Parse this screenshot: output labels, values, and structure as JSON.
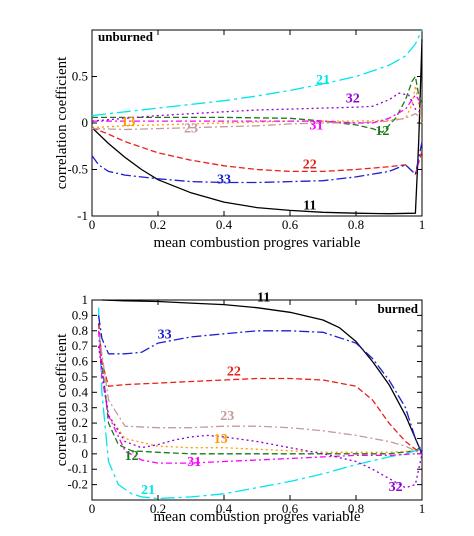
{
  "colors": {
    "s11": "#000000",
    "s12": "#1a7a1a",
    "s13": "#ff9900",
    "s21": "#00e5ee",
    "s22": "#e8201a",
    "s23": "#c49a9a",
    "s31": "#ff00ff",
    "s32": "#9400d3",
    "s33": "#1f1fd0"
  },
  "chart_data": [
    {
      "type": "line",
      "panel_tag": "unburned",
      "xlabel": "mean combustion progres variable",
      "ylabel": "correlation coefficient",
      "xlim": [
        0,
        1
      ],
      "ylim": [
        -1,
        1
      ],
      "xticks": [
        "0",
        "0.2",
        "0.4",
        "0.6",
        "0.8",
        "1"
      ],
      "yticks": [
        "-1",
        "-0.5",
        "0",
        "0.5"
      ],
      "series": [
        {
          "name": "11",
          "color_key": "s11",
          "dash": "solid",
          "x": [
            0,
            0.05,
            0.1,
            0.15,
            0.2,
            0.3,
            0.4,
            0.5,
            0.6,
            0.7,
            0.8,
            0.9,
            0.98,
            0.99,
            1.0
          ],
          "y": [
            -0.05,
            -0.22,
            -0.37,
            -0.5,
            -0.61,
            -0.75,
            -0.85,
            -0.91,
            -0.94,
            -0.96,
            -0.97,
            -0.975,
            -0.97,
            -0.2,
            0.9
          ]
        },
        {
          "name": "12",
          "color_key": "s12",
          "dash": "6 3",
          "x": [
            0,
            0.2,
            0.4,
            0.6,
            0.7,
            0.8,
            0.85,
            0.88,
            0.92,
            0.95,
            0.97,
            0.98,
            0.99,
            1.0
          ],
          "y": [
            0.06,
            0.06,
            0.06,
            0.05,
            0.02,
            -0.02,
            -0.06,
            -0.1,
            0.05,
            0.25,
            0.45,
            0.5,
            0.3,
            0.2
          ]
        },
        {
          "name": "13",
          "color_key": "s13",
          "dash": "2 3",
          "x": [
            0,
            0.1,
            0.2,
            0.4,
            0.6,
            0.8,
            0.9,
            0.95,
            0.97,
            0.98,
            0.99,
            1.0
          ],
          "y": [
            -0.05,
            -0.03,
            -0.02,
            0,
            0.02,
            0.02,
            0.03,
            0.05,
            0.2,
            0.4,
            0.2,
            0.0
          ]
        },
        {
          "name": "21",
          "color_key": "s21",
          "dash": "14 4 3 4",
          "x": [
            0,
            0.1,
            0.2,
            0.3,
            0.4,
            0.5,
            0.6,
            0.7,
            0.8,
            0.9,
            0.95,
            0.98,
            1.0
          ],
          "y": [
            0.08,
            0.12,
            0.16,
            0.2,
            0.24,
            0.29,
            0.35,
            0.42,
            0.5,
            0.62,
            0.72,
            0.85,
            1.0
          ]
        },
        {
          "name": "22",
          "color_key": "s22",
          "dash": "6 3",
          "x": [
            0,
            0.05,
            0.1,
            0.2,
            0.3,
            0.4,
            0.5,
            0.6,
            0.7,
            0.8,
            0.9,
            0.95,
            0.98,
            1.0
          ],
          "y": [
            -0.05,
            -0.12,
            -0.2,
            -0.32,
            -0.4,
            -0.46,
            -0.5,
            -0.52,
            -0.52,
            -0.5,
            -0.47,
            -0.45,
            -0.55,
            -0.3
          ]
        },
        {
          "name": "23",
          "color_key": "s23",
          "dash": "8 3 2 3",
          "x": [
            0,
            0.1,
            0.2,
            0.3,
            0.4,
            0.5,
            0.6,
            0.7,
            0.8,
            0.9,
            0.95,
            0.98,
            1.0
          ],
          "y": [
            -0.06,
            -0.07,
            -0.06,
            -0.05,
            -0.04,
            -0.03,
            -0.01,
            0.0,
            0.0,
            0.02,
            0.05,
            0.1,
            0.05
          ]
        },
        {
          "name": "31",
          "color_key": "s31",
          "dash": "6 3 2 3",
          "x": [
            0,
            0.2,
            0.4,
            0.6,
            0.7,
            0.8,
            0.85,
            0.9,
            0.95,
            0.98,
            1.0
          ],
          "y": [
            0.02,
            0.02,
            0.02,
            0.02,
            0.02,
            0.0,
            0.0,
            0.05,
            0.15,
            0.3,
            0.2
          ]
        },
        {
          "name": "32",
          "color_key": "s32",
          "dash": "2 3",
          "x": [
            0,
            0.1,
            0.2,
            0.3,
            0.4,
            0.5,
            0.6,
            0.7,
            0.8,
            0.85,
            0.9,
            0.93,
            0.96,
            0.98,
            1.0
          ],
          "y": [
            0.02,
            0.05,
            0.08,
            0.1,
            0.12,
            0.14,
            0.15,
            0.16,
            0.17,
            0.18,
            0.25,
            0.32,
            0.3,
            0.15,
            0.1
          ]
        },
        {
          "name": "33",
          "color_key": "s33",
          "dash": "10 3 2 3",
          "x": [
            0,
            0.02,
            0.05,
            0.1,
            0.2,
            0.3,
            0.4,
            0.5,
            0.6,
            0.7,
            0.8,
            0.9,
            0.95,
            0.98,
            1.0
          ],
          "y": [
            -0.35,
            -0.45,
            -0.52,
            -0.56,
            -0.6,
            -0.63,
            -0.64,
            -0.64,
            -0.63,
            -0.62,
            -0.58,
            -0.52,
            -0.45,
            -0.55,
            -0.2
          ]
        }
      ],
      "label_positions": [
        {
          "text": "11",
          "x": 0.66,
          "y": -0.93
        },
        {
          "text": "12",
          "x": 0.88,
          "y": -0.13
        },
        {
          "text": "13",
          "x": 0.11,
          "y": -0.03
        },
        {
          "text": "21",
          "x": 0.7,
          "y": 0.42
        },
        {
          "text": "22",
          "x": 0.66,
          "y": -0.49
        },
        {
          "text": "23",
          "x": 0.3,
          "y": -0.1
        },
        {
          "text": "31",
          "x": 0.68,
          "y": -0.07
        },
        {
          "text": "32",
          "x": 0.79,
          "y": 0.22
        },
        {
          "text": "33",
          "x": 0.4,
          "y": -0.65
        }
      ]
    },
    {
      "type": "line",
      "panel_tag": "burned",
      "xlabel": "mean combustion progres variable",
      "ylabel": "correlation coefficient",
      "xlim": [
        0,
        1
      ],
      "ylim": [
        -0.3,
        1
      ],
      "xticks": [
        "0",
        "0.2",
        "0.4",
        "0.6",
        "0.8",
        "1"
      ],
      "yticks": [
        "-0.2",
        "-0.1",
        "0",
        "0.1",
        "0.2",
        "0.3",
        "0.4",
        "0.5",
        "0.6",
        "0.7",
        "0.8",
        "0.9",
        "1"
      ],
      "series": [
        {
          "name": "11",
          "color_key": "s11",
          "dash": "solid",
          "x": [
            0.03,
            0.1,
            0.2,
            0.3,
            0.4,
            0.5,
            0.6,
            0.7,
            0.75,
            0.8,
            0.85,
            0.9,
            0.95,
            0.98,
            1.0
          ],
          "y": [
            1.0,
            0.995,
            0.99,
            0.98,
            0.97,
            0.95,
            0.92,
            0.87,
            0.82,
            0.73,
            0.6,
            0.45,
            0.25,
            0.1,
            0.0
          ]
        },
        {
          "name": "12",
          "color_key": "s12",
          "dash": "6 3",
          "x": [
            0.02,
            0.03,
            0.05,
            0.08,
            0.12,
            0.2,
            0.3,
            0.4,
            0.5,
            0.6,
            0.7,
            0.8,
            0.9,
            0.98,
            1.0
          ],
          "y": [
            0.85,
            0.6,
            0.2,
            0.06,
            0.02,
            0.01,
            0.0,
            0.0,
            0.0,
            0.0,
            0.0,
            0.0,
            0.0,
            0.02,
            0.05
          ]
        },
        {
          "name": "13",
          "color_key": "s13",
          "dash": "2 3",
          "x": [
            0.02,
            0.05,
            0.1,
            0.2,
            0.3,
            0.4,
            0.5,
            0.6,
            0.7,
            0.8,
            0.9,
            0.98,
            1.0
          ],
          "y": [
            0.7,
            0.25,
            0.1,
            0.05,
            0.04,
            0.04,
            0.03,
            0.02,
            0.01,
            0.01,
            0.01,
            0.02,
            0.0
          ]
        },
        {
          "name": "21",
          "color_key": "s21",
          "dash": "14 4 3 4",
          "x": [
            0.02,
            0.03,
            0.05,
            0.08,
            0.12,
            0.15,
            0.2,
            0.3,
            0.4,
            0.5,
            0.6,
            0.7,
            0.8,
            0.9,
            0.95,
            0.98,
            1.0
          ],
          "y": [
            0.95,
            0.4,
            -0.05,
            -0.2,
            -0.26,
            -0.28,
            -0.29,
            -0.28,
            -0.26,
            -0.22,
            -0.18,
            -0.13,
            -0.07,
            -0.02,
            0.0,
            0.02,
            0.03
          ]
        },
        {
          "name": "22",
          "color_key": "s22",
          "dash": "6 3",
          "x": [
            0.02,
            0.03,
            0.05,
            0.1,
            0.2,
            0.3,
            0.4,
            0.5,
            0.6,
            0.7,
            0.8,
            0.85,
            0.9,
            0.95,
            0.98,
            1.0
          ],
          "y": [
            0.85,
            0.6,
            0.44,
            0.45,
            0.46,
            0.47,
            0.48,
            0.49,
            0.49,
            0.48,
            0.44,
            0.35,
            0.2,
            0.08,
            0.03,
            0.0
          ]
        },
        {
          "name": "23",
          "color_key": "s23",
          "dash": "8 3 2 3",
          "x": [
            0.02,
            0.05,
            0.1,
            0.2,
            0.3,
            0.4,
            0.5,
            0.6,
            0.7,
            0.8,
            0.9,
            0.95,
            1.0
          ],
          "y": [
            0.8,
            0.35,
            0.18,
            0.17,
            0.17,
            0.18,
            0.18,
            0.17,
            0.15,
            0.12,
            0.08,
            0.05,
            0.0
          ]
        },
        {
          "name": "31",
          "color_key": "s31",
          "dash": "6 3 2 3",
          "x": [
            0.02,
            0.03,
            0.05,
            0.1,
            0.15,
            0.2,
            0.3,
            0.4,
            0.5,
            0.6,
            0.7,
            0.8,
            0.9,
            0.98,
            1.0
          ],
          "y": [
            0.8,
            0.5,
            0.25,
            0.02,
            -0.04,
            -0.06,
            -0.06,
            -0.05,
            -0.04,
            -0.03,
            -0.02,
            -0.01,
            -0.01,
            0.0,
            0.0
          ]
        },
        {
          "name": "32",
          "color_key": "s32",
          "dash": "2 3",
          "x": [
            0.02,
            0.05,
            0.1,
            0.15,
            0.2,
            0.25,
            0.3,
            0.35,
            0.4,
            0.5,
            0.6,
            0.7,
            0.8,
            0.85,
            0.9,
            0.95,
            0.98,
            1.0
          ],
          "y": [
            0.7,
            0.25,
            0.08,
            0.04,
            0.06,
            0.09,
            0.11,
            0.12,
            0.11,
            0.08,
            0.04,
            0.0,
            -0.05,
            -0.1,
            -0.16,
            -0.22,
            -0.2,
            0.0
          ]
        },
        {
          "name": "33",
          "color_key": "s33",
          "dash": "10 3 2 3",
          "x": [
            0.02,
            0.03,
            0.05,
            0.1,
            0.15,
            0.2,
            0.3,
            0.4,
            0.5,
            0.6,
            0.7,
            0.8,
            0.85,
            0.9,
            0.95,
            0.98,
            1.0
          ],
          "y": [
            0.9,
            0.75,
            0.65,
            0.65,
            0.66,
            0.72,
            0.76,
            0.78,
            0.8,
            0.8,
            0.79,
            0.72,
            0.62,
            0.48,
            0.3,
            0.1,
            0.0
          ]
        }
      ],
      "label_positions": [
        {
          "text": "11",
          "x": 0.52,
          "y": 0.99
        },
        {
          "text": "12",
          "x": 0.12,
          "y": -0.04
        },
        {
          "text": "13",
          "x": 0.39,
          "y": 0.07
        },
        {
          "text": "21",
          "x": 0.17,
          "y": -0.26
        },
        {
          "text": "22",
          "x": 0.43,
          "y": 0.51
        },
        {
          "text": "23",
          "x": 0.41,
          "y": 0.22
        },
        {
          "text": "31",
          "x": 0.31,
          "y": -0.08
        },
        {
          "text": "32",
          "x": 0.92,
          "y": -0.24
        },
        {
          "text": "33",
          "x": 0.22,
          "y": 0.75
        }
      ]
    }
  ]
}
